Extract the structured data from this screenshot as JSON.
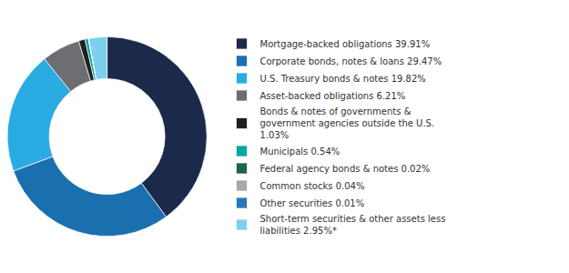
{
  "chart_data": {
    "type": "pie",
    "categories": [
      "Mortgage-backed obligations 39.91%",
      "Corporate bonds, notes & loans 29.47%",
      "U.S. Treasury bonds & notes 19.82%",
      "Asset-backed obligations 6.21%",
      "Bonds & notes of governments &\ngovernment agencies outside the U.S.\n1.03%",
      "Municipals 0.54%",
      "Federal agency bonds & notes 0.02%",
      "Common stocks 0.04%",
      "Other securities 0.01%",
      "Short-term securities & other assets less\nliabilities 2.95%*"
    ],
    "values": [
      39.91,
      29.47,
      19.82,
      6.21,
      1.03,
      0.54,
      0.02,
      0.04,
      0.01,
      2.95
    ],
    "colors": [
      "#1b2a4a",
      "#1a6faf",
      "#29abe2",
      "#6d6e71",
      "#231f20",
      "#00a99d",
      "#1a6645",
      "#a7a9ac",
      "#2e75b6",
      "#7dcfed"
    ],
    "legend": "right"
  }
}
